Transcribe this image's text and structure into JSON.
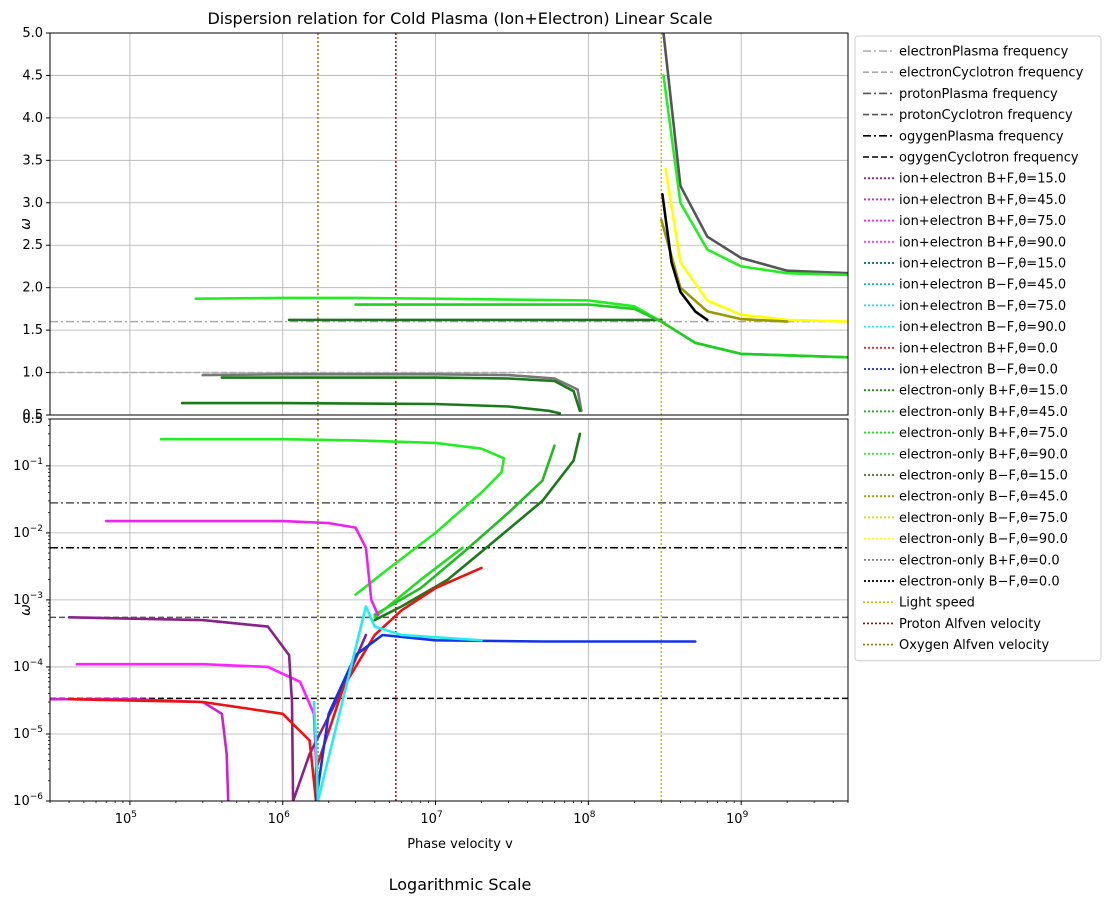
{
  "figure": {
    "title": "Dispersion relation for Cold Plasma (Ion+Electron) Linear Scale",
    "bottom_caption": "Logarithmic Scale"
  },
  "chart_data": [
    {
      "type": "scatter",
      "panel": "top-linear",
      "title": "Dispersion relation for Cold Plasma (Ion+Electron) Linear Scale",
      "xscale": "log",
      "yscale": "linear",
      "xlim": [
        30000,
        5000000000
      ],
      "ylim": [
        0.5,
        5.0
      ],
      "ylabel": "ω",
      "yticks": [
        0.5,
        1.0,
        1.5,
        2.0,
        2.5,
        3.0,
        3.5,
        4.0,
        4.5,
        5.0
      ],
      "ytick_labels": [
        "0.5",
        "1.0",
        "1.5",
        "2.0",
        "2.5",
        "3.0",
        "3.5",
        "4.0",
        "4.5",
        "5.0"
      ],
      "grid": true,
      "hlines": [
        {
          "name": "electronPlasma frequency",
          "y": 1.6,
          "color": "#aaaaaa",
          "style": "dashdot"
        },
        {
          "name": "electronCyclotron frequency",
          "y": 1.0,
          "color": "#aaaaaa",
          "style": "dashed"
        }
      ],
      "vlines": [
        {
          "name": "Light speed",
          "x": 300000000,
          "color": "#bfbf00",
          "style": "dotted"
        },
        {
          "name": "Proton Alfven velocity",
          "x": 5500000,
          "color": "#bf0000",
          "style": "dotted"
        },
        {
          "name": "Oxygen Alfven velocity",
          "x": 1700000,
          "color": "#7f7f00",
          "style": "dotted"
        }
      ],
      "series": [
        {
          "name": "electron-only B+F, θ=90.0 (upper branch)",
          "color": "#22ee22",
          "x": [
            270000,
            1000000,
            3000000,
            10000000,
            30000000,
            100000000,
            200000000,
            300000000,
            500000000,
            1000000000,
            5000000000
          ],
          "y": [
            1.87,
            1.88,
            1.88,
            1.87,
            1.86,
            1.85,
            1.78,
            1.6,
            1.35,
            1.22,
            1.18
          ]
        },
        {
          "name": "electron-only B+F, θ=15.0 (upper branch)",
          "color": "#207020",
          "x": [
            1100000,
            3000000,
            10000000,
            30000000,
            100000000,
            200000000,
            300000000
          ],
          "y": [
            1.62,
            1.62,
            1.62,
            1.62,
            1.62,
            1.62,
            1.62
          ]
        },
        {
          "name": "electron-only B+F, θ=75.0 (upper branch)",
          "color": "#22cc22",
          "x": [
            3000000,
            10000000,
            30000000,
            100000000,
            200000000,
            300000000,
            500000000,
            1000000000,
            5000000000
          ],
          "y": [
            1.8,
            1.8,
            1.8,
            1.8,
            1.75,
            1.6,
            1.35,
            1.22,
            1.18
          ]
        },
        {
          "name": "electron-only B+F, θ=0.0 (lower branch)",
          "color": "#777777",
          "x": [
            300000,
            1000000,
            10000000,
            30000000,
            60000000,
            85000000,
            90000000
          ],
          "y": [
            0.97,
            0.98,
            0.98,
            0.97,
            0.93,
            0.8,
            0.55
          ]
        },
        {
          "name": "electron-only B+F, θ=45.0 (lower branch)",
          "color": "#1a7a1a",
          "x": [
            400000,
            1000000,
            10000000,
            30000000,
            60000000,
            80000000,
            88000000
          ],
          "y": [
            0.94,
            0.94,
            0.94,
            0.93,
            0.9,
            0.78,
            0.55
          ]
        },
        {
          "name": "electron-only B+F, θ=15.0 (lower branch)",
          "color": "#1a7a1a",
          "x": [
            220000,
            1000000,
            10000000,
            30000000,
            55000000,
            65000000
          ],
          "y": [
            0.64,
            0.64,
            0.63,
            0.6,
            0.55,
            0.52
          ]
        },
        {
          "name": "electron-only B+F, θ=0.0 (upper branch)",
          "color": "#555555",
          "x": [
            310000000,
            400000000,
            600000000,
            1000000000,
            2000000000,
            5000000000
          ],
          "y": [
            5.0,
            3.2,
            2.6,
            2.35,
            2.2,
            2.17
          ]
        },
        {
          "name": "electron-only B+F, θ=90.0 (upper cutoff)",
          "color": "#22ee22",
          "x": [
            310000000,
            400000000,
            600000000,
            1000000000,
            2000000000,
            5000000000
          ],
          "y": [
            4.5,
            3.0,
            2.45,
            2.25,
            2.17,
            2.15
          ]
        },
        {
          "name": "electron-only B−F, θ=90.0",
          "color": "#ffff00",
          "x": [
            320000000,
            400000000,
            600000000,
            1000000000,
            2000000000,
            5000000000
          ],
          "y": [
            3.4,
            2.3,
            1.85,
            1.68,
            1.62,
            1.6
          ]
        },
        {
          "name": "electron-only B−F, θ=45.0",
          "color": "#999900",
          "x": [
            300000000,
            400000000,
            600000000,
            1000000000,
            2000000000
          ],
          "y": [
            2.8,
            2.0,
            1.72,
            1.63,
            1.6
          ]
        },
        {
          "name": "electron-only B−F, θ=0.0",
          "color": "#000000",
          "x": [
            305000000,
            350000000,
            400000000,
            500000000,
            600000000
          ],
          "y": [
            3.1,
            2.3,
            1.95,
            1.72,
            1.62
          ]
        }
      ]
    },
    {
      "type": "scatter",
      "panel": "bottom-log",
      "xscale": "log",
      "yscale": "log",
      "xlim": [
        30000,
        5000000000
      ],
      "ylim": [
        1e-06,
        0.5
      ],
      "xlabel": "Phase velocity v",
      "ylabel": "ω",
      "xticks": [
        100000,
        1000000,
        10000000,
        100000000,
        1000000000
      ],
      "xtick_labels": [
        "10^5",
        "10^6",
        "10^7",
        "10^8",
        "10^9"
      ],
      "yticks": [
        1e-06,
        1e-05,
        0.0001,
        0.001,
        0.01,
        0.1
      ],
      "ytick_labels": [
        "10^−6",
        "10^−5",
        "10^−4",
        "10^−3",
        "10^−2",
        "10^−1"
      ],
      "ytick_top_label": "0.5",
      "grid": true,
      "hlines": [
        {
          "name": "protonPlasma frequency",
          "y": 0.028,
          "color": "#555555",
          "style": "dashdot"
        },
        {
          "name": "protonCyclotron frequency",
          "y": 0.00055,
          "color": "#555555",
          "style": "dashed"
        },
        {
          "name": "ogygenPlasma frequency",
          "y": 0.006,
          "color": "#000000",
          "style": "dashdot"
        },
        {
          "name": "ogygenCyclotron frequency",
          "y": 3.4e-05,
          "color": "#000000",
          "style": "dashed"
        }
      ],
      "vlines": [
        {
          "name": "Light speed",
          "x": 300000000,
          "color": "#bfbf00",
          "style": "dotted"
        },
        {
          "name": "Proton Alfven velocity",
          "x": 5500000,
          "color": "#bf0000",
          "style": "dotted"
        },
        {
          "name": "Oxygen Alfven velocity",
          "x": 1700000,
          "color": "#7f7f00",
          "style": "dotted"
        }
      ],
      "series": [
        {
          "name": "electron-only B+F, θ=90.0",
          "color": "#22ee22",
          "x": [
            160000,
            500000,
            1000000,
            3000000,
            10000000,
            20000000,
            28000000,
            27000000,
            20000000,
            10000000,
            5000000,
            3000000
          ],
          "y": [
            0.25,
            0.25,
            0.25,
            0.24,
            0.22,
            0.18,
            0.13,
            0.08,
            0.04,
            0.01,
            0.003,
            0.0012
          ]
        },
        {
          "name": "electron-only B+F, θ=45.0",
          "color": "#22bb22",
          "x": [
            60000000,
            50000000,
            30000000,
            15000000,
            8000000,
            4000000
          ],
          "y": [
            0.2,
            0.06,
            0.02,
            0.005,
            0.0015,
            0.0006
          ]
        },
        {
          "name": "electron-only B+F, θ=15.0",
          "color": "#1a7a1a",
          "x": [
            88000000,
            80000000,
            50000000,
            25000000,
            12000000,
            6000000,
            4000000
          ],
          "y": [
            0.3,
            0.12,
            0.03,
            0.008,
            0.002,
            0.0008,
            0.0005
          ]
        },
        {
          "name": "electron-only B+F, θ=75.0",
          "color": "#22dd22",
          "x": [
            4000000,
            8000000,
            15000000
          ],
          "y": [
            0.00055,
            0.002,
            0.006
          ]
        },
        {
          "name": "ion+electron B+F, θ=75.0",
          "color": "#ee22ee",
          "x": [
            70000,
            300000,
            1000000,
            2000000,
            3000000,
            3500000,
            3800000,
            4200000
          ],
          "y": [
            0.015,
            0.015,
            0.015,
            0.014,
            0.012,
            0.006,
            0.001,
            0.0006
          ]
        },
        {
          "name": "ion+electron B+F, θ=90.0",
          "color": "#ff22ff",
          "x": [
            45000,
            100000,
            300000,
            800000,
            1300000,
            1600000,
            1700000
          ],
          "y": [
            0.00011,
            0.00011,
            0.00011,
            0.0001,
            6e-05,
            2e-05,
            1e-06
          ]
        },
        {
          "name": "ion+electron B+F, θ=45.0",
          "color": "#cc22cc",
          "x": [
            30000,
            100000,
            300000,
            400000,
            430000,
            440000
          ],
          "y": [
            3.3e-05,
            3.3e-05,
            3e-05,
            2e-05,
            5e-06,
            1e-06
          ]
        },
        {
          "name": "ion+electron B+F, θ=15.0",
          "color": "#882288",
          "x": [
            40000,
            300000,
            800000,
            1100000,
            1150000,
            1170000,
            1500000,
            2500000,
            3500000
          ],
          "y": [
            0.00055,
            0.0005,
            0.0004,
            0.00015,
            3e-05,
            1e-06,
            5e-06,
            5e-05,
            0.0003
          ]
        },
        {
          "name": "ion+electron B+F, θ=0.0",
          "color": "#ee1111",
          "x": [
            40000,
            300000,
            1000000,
            1500000,
            1650000,
            1650000,
            2500000,
            4000000,
            6000000,
            10000000,
            20000000
          ],
          "y": [
            3.3e-05,
            3e-05,
            2e-05,
            8e-06,
            1e-06,
            3e-06,
            5e-05,
            0.0003,
            0.0007,
            0.0015,
            0.003
          ]
        },
        {
          "name": "ion+electron B−F, θ=0.0",
          "color": "#1133ee",
          "x": [
            1650000,
            2000000,
            3000000,
            4500000,
            10000000,
            50000000,
            200000000,
            500000000
          ],
          "y": [
            1e-06,
            2e-05,
            0.00015,
            0.0003,
            0.00025,
            0.00024,
            0.00024,
            0.00024
          ]
        },
        {
          "name": "ion+electron B−F, θ=90.0",
          "color": "#22eeee",
          "x": [
            1600000,
            1650000,
            1700000,
            3500000,
            4000000,
            6000000,
            20000000
          ],
          "y": [
            3e-05,
            8e-06,
            1e-06,
            0.0008,
            0.0004,
            0.0003,
            0.00025
          ]
        }
      ]
    }
  ],
  "legend": {
    "placement": "right-outside",
    "entries": [
      {
        "label": "electronPlasma frequency",
        "color": "#aaaaaa",
        "style": "dashdot"
      },
      {
        "label": "electronCyclotron frequency",
        "color": "#aaaaaa",
        "style": "dashed"
      },
      {
        "label": "protonPlasma frequency",
        "color": "#555555",
        "style": "dashdot"
      },
      {
        "label": "protonCyclotron frequency",
        "color": "#555555",
        "style": "dashed"
      },
      {
        "label": "ogygenPlasma frequency",
        "color": "#000000",
        "style": "dashdot"
      },
      {
        "label": "ogygenCyclotron frequency",
        "color": "#000000",
        "style": "dashed"
      },
      {
        "label": "ion+electron B+F,θ=15.0",
        "color": "#882288",
        "style": "points"
      },
      {
        "label": "ion+electron B+F,θ=45.0",
        "color": "#cc22cc",
        "style": "points"
      },
      {
        "label": "ion+electron B+F,θ=75.0",
        "color": "#ee22ee",
        "style": "points"
      },
      {
        "label": "ion+electron B+F,θ=90.0",
        "color": "#ff22ff",
        "style": "points"
      },
      {
        "label": "ion+electron B−F,θ=15.0",
        "color": "#116666",
        "style": "points"
      },
      {
        "label": "ion+electron B−F,θ=45.0",
        "color": "#11aaaa",
        "style": "points"
      },
      {
        "label": "ion+electron B−F,θ=75.0",
        "color": "#22dddd",
        "style": "points"
      },
      {
        "label": "ion+electron B−F,θ=90.0",
        "color": "#22eeee",
        "style": "points"
      },
      {
        "label": "ion+electron B+F,θ=0.0",
        "color": "#ee1111",
        "style": "points"
      },
      {
        "label": "ion+electron B−F,θ=0.0",
        "color": "#1133ee",
        "style": "points"
      },
      {
        "label": "electron-only B+F,θ=15.0",
        "color": "#1a7a1a",
        "style": "points"
      },
      {
        "label": "electron-only B+F,θ=45.0",
        "color": "#22aa22",
        "style": "points"
      },
      {
        "label": "electron-only B+F,θ=75.0",
        "color": "#22dd22",
        "style": "points"
      },
      {
        "label": "electron-only B+F,θ=90.0",
        "color": "#22ee22",
        "style": "points"
      },
      {
        "label": "electron-only B−F,θ=15.0",
        "color": "#556b2f",
        "style": "points"
      },
      {
        "label": "electron-only B−F,θ=45.0",
        "color": "#999900",
        "style": "points"
      },
      {
        "label": "electron-only B−F,θ=75.0",
        "color": "#dddd00",
        "style": "points"
      },
      {
        "label": "electron-only B−F,θ=90.0",
        "color": "#ffff00",
        "style": "points"
      },
      {
        "label": "electron-only B+F,θ=0.0",
        "color": "#777777",
        "style": "points"
      },
      {
        "label": "electron-only B−F,θ=0.0",
        "color": "#000000",
        "style": "points"
      },
      {
        "label": "Light speed",
        "color": "#bfbf00",
        "style": "dotted"
      },
      {
        "label": "Proton Alfven velocity",
        "color": "#bf0000",
        "style": "dotted"
      },
      {
        "label": "Oxygen Alfven velocity",
        "color": "#7f7f00",
        "style": "dotted"
      }
    ]
  }
}
